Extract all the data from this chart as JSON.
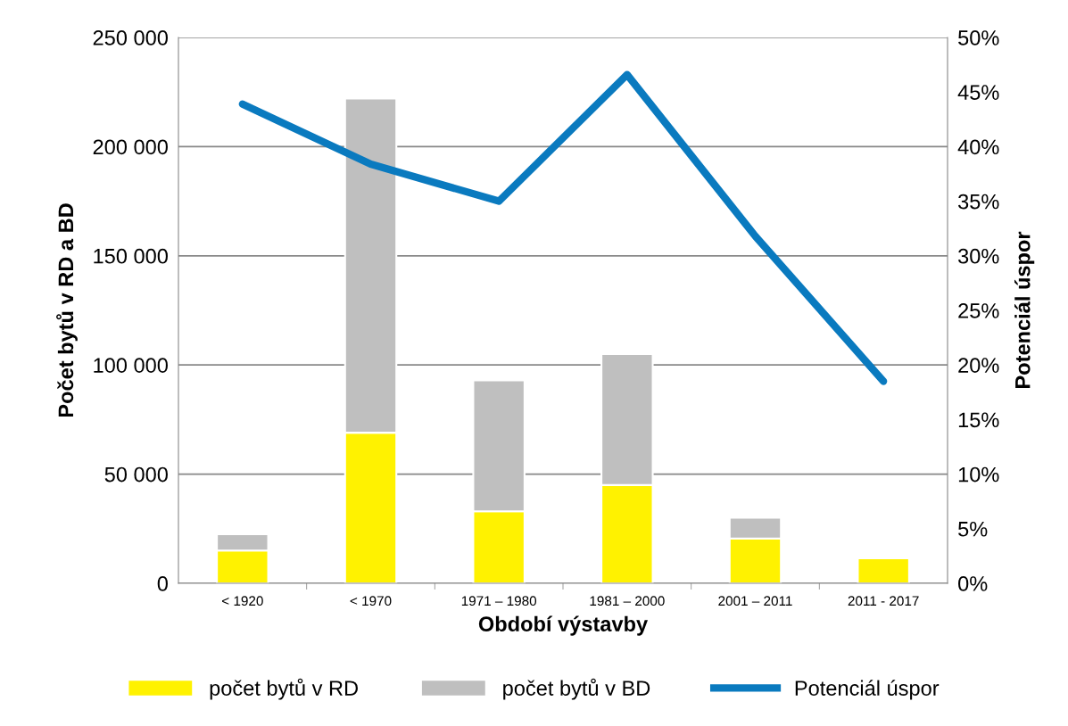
{
  "chart_data": {
    "type": "bar",
    "stacked": true,
    "xlabel": "Období výstavby",
    "ylabel": "Počet bytů v RD a BD",
    "y2label": "Potenciál úspor",
    "categories": [
      "< 1920",
      "< 1970",
      "1971 – 1980",
      "1981 – 2000",
      "2001 – 2011",
      "2011 - 2017"
    ],
    "series": [
      {
        "name": "počet bytů v RD",
        "color": "#fff200",
        "values": [
          15000,
          69000,
          33000,
          45000,
          20500,
          11500
        ]
      },
      {
        "name": "počet bytů v BD",
        "color": "#bfbfbf",
        "values": [
          7500,
          153000,
          60000,
          60000,
          9500,
          null
        ]
      },
      {
        "name": "Potenciál úspor",
        "type": "line",
        "axis": "y2",
        "color": "#0a7abf",
        "values": [
          43.9,
          38.4,
          35.0,
          46.6,
          31.8,
          18.5
        ]
      }
    ],
    "ylim": [
      0,
      250000
    ],
    "yticks": [
      {
        "value": 0,
        "label": "0"
      },
      {
        "value": 50000,
        "label": "50 000"
      },
      {
        "value": 100000,
        "label": "100 000"
      },
      {
        "value": 150000,
        "label": "150 000"
      },
      {
        "value": 200000,
        "label": "200 000"
      },
      {
        "value": 250000,
        "label": "250 000"
      }
    ],
    "y2lim": [
      0,
      50
    ],
    "y2ticks": [
      {
        "value": 0,
        "label": "0%"
      },
      {
        "value": 5,
        "label": "5%"
      },
      {
        "value": 10,
        "label": "10%"
      },
      {
        "value": 15,
        "label": "15%"
      },
      {
        "value": 20,
        "label": "20%"
      },
      {
        "value": 25,
        "label": "25%"
      },
      {
        "value": 30,
        "label": "30%"
      },
      {
        "value": 35,
        "label": "35%"
      },
      {
        "value": 40,
        "label": "40%"
      },
      {
        "value": 45,
        "label": "45%"
      },
      {
        "value": 50,
        "label": "50%"
      }
    ],
    "grid": "y",
    "legend": "bottom",
    "marker": "none",
    "line_style": "solid"
  }
}
